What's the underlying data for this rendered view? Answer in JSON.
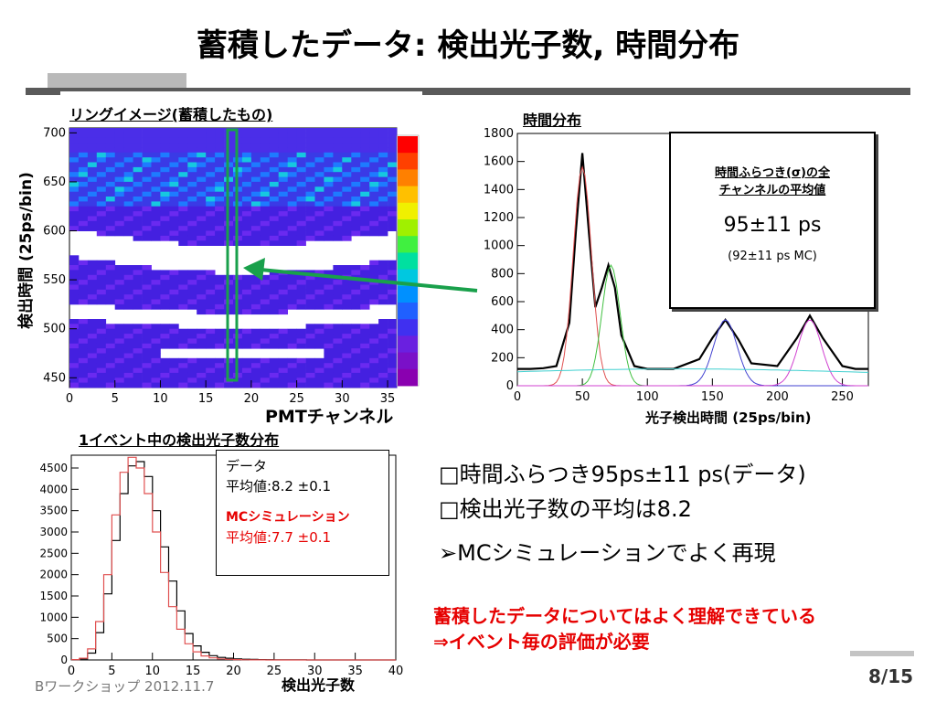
{
  "slide": {
    "title": "蓄積したデータ: 検出光子数, 時間分布",
    "footer_left": "Bワークショップ 2012.11.7",
    "page": "8/15"
  },
  "ring_panel": {
    "title": "リングイメージ(蓄積したもの)",
    "ylabel": "検出時間 (25ps/bin)",
    "xlabel": "PMTチャンネル"
  },
  "time_panel": {
    "title": "時間分布",
    "xlabel": "光子検出時間 (25ps/bin)",
    "box_title_1": "時間ふらつき(σ)の全",
    "box_title_2": "チャンネルの平均値",
    "box_value": "95±11 ps",
    "box_mc": "(92±11 ps MC)"
  },
  "npe_panel": {
    "title": "1イベント中の検出光子数分布",
    "xlabel": "検出光子数",
    "legend_data_title": "データ",
    "legend_data_mean": "平均値:8.2 ±0.1",
    "legend_mc_title": "MCシミュレーション",
    "legend_mc_mean": "平均値:7.7 ±0.1"
  },
  "bullets": {
    "line1": "□時間ふらつき95ps±11 ps(データ)",
    "line2": "□検出光子数の平均は8.2",
    "line3": "➢MCシミュレーションでよく再現"
  },
  "conclusion": {
    "line1": "蓄積したデータについてはよく理解できている",
    "line2": "⇒イベント毎の評価が必要"
  },
  "colors": {
    "accent_red": "#e60000",
    "arrow_green": "#19a04b",
    "data_line": "#000000",
    "mc_line": "#e05050"
  },
  "chart_data": [
    {
      "type": "heatmap",
      "x_ticks": [
        "0",
        "5",
        "10",
        "15",
        "20",
        "25",
        "30",
        "35"
      ],
      "y_ticks": [
        "450",
        "500",
        "550",
        "600",
        "650",
        "700"
      ],
      "xlim": [
        0,
        36
      ],
      "ylim": [
        440,
        705
      ]
    },
    {
      "type": "line",
      "x_ticks": [
        "0",
        "50",
        "100",
        "150",
        "200",
        "250"
      ],
      "y_ticks": [
        "0",
        "200",
        "400",
        "600",
        "800",
        "1000",
        "1200",
        "1400",
        "1600",
        "1800"
      ],
      "xlim": [
        0,
        270
      ],
      "ylim": [
        0,
        1800
      ],
      "x": [
        0,
        10,
        20,
        30,
        40,
        45,
        50,
        55,
        60,
        65,
        70,
        75,
        80,
        90,
        100,
        120,
        140,
        150,
        160,
        170,
        180,
        200,
        215,
        225,
        235,
        250,
        260,
        270
      ],
      "series": [
        {
          "values": [
            120,
            120,
            125,
            140,
            450,
            1100,
            1660,
            1100,
            560,
            700,
            860,
            700,
            360,
            140,
            120,
            120,
            190,
            340,
            470,
            330,
            160,
            140,
            340,
            500,
            340,
            140,
            120,
            120
          ]
        }
      ]
    },
    {
      "type": "line",
      "x_ticks": [
        "0",
        "5",
        "10",
        "15",
        "20",
        "25",
        "30",
        "35",
        "40"
      ],
      "y_ticks": [
        "0",
        "500",
        "1000",
        "1500",
        "2000",
        "2500",
        "3000",
        "3500",
        "4000",
        "4500"
      ],
      "xlim": [
        0,
        40
      ],
      "ylim": [
        0,
        4800
      ],
      "x": [
        0,
        1,
        2,
        3,
        4,
        5,
        6,
        7,
        8,
        9,
        10,
        11,
        12,
        13,
        14,
        15,
        16,
        17,
        18,
        19,
        20,
        21,
        22,
        23,
        24,
        25,
        26,
        27,
        28,
        29,
        30,
        35,
        40
      ],
      "series": [
        {
          "name": "データ",
          "values": [
            5,
            25,
            160,
            640,
            1550,
            2800,
            3900,
            4550,
            4650,
            4300,
            3500,
            2650,
            1850,
            1150,
            620,
            330,
            180,
            100,
            60,
            40,
            25,
            18,
            12,
            9,
            6,
            4,
            3,
            2,
            2,
            1,
            1,
            0,
            0
          ]
        },
        {
          "name": "MCシミュレーション",
          "values": [
            8,
            40,
            260,
            900,
            2000,
            3400,
            4400,
            4750,
            4500,
            3900,
            3000,
            2050,
            1250,
            720,
            380,
            190,
            95,
            50,
            26,
            14,
            8,
            5,
            3,
            2,
            1,
            1,
            0,
            0,
            0,
            0,
            0,
            0,
            0
          ]
        }
      ]
    }
  ]
}
